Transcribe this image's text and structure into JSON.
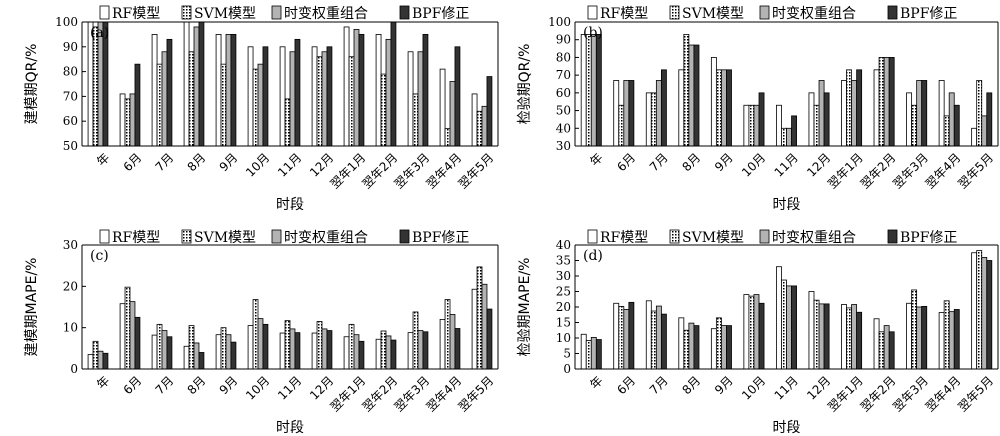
{
  "legend": [
    "RF模型",
    "SVM模型",
    "时变权重组合",
    "BPF修正"
  ],
  "colors": {
    "rf": "#ffffff",
    "svm": "#ffffff",
    "tv": "#b3b3b3",
    "bpf": "#333333"
  },
  "chart_data": [
    {
      "type": "bar",
      "tag": "(a)",
      "ylabel": "建模期QR/%",
      "xlabel": "时段",
      "ylim": [
        50,
        100
      ],
      "yticks": [
        50,
        60,
        70,
        80,
        90,
        100
      ],
      "categories": [
        "年",
        "6月",
        "7月",
        "8月",
        "9月",
        "10月",
        "11月",
        "12月",
        "翌年1月",
        "翌年2月",
        "翌年3月",
        "翌年4月",
        "翌年5月"
      ],
      "series": [
        {
          "name": "RF模型",
          "values": [
            100,
            71,
            95,
            100,
            95,
            90,
            90,
            90,
            98,
            95,
            88,
            81,
            71
          ]
        },
        {
          "name": "SVM模型",
          "values": [
            98,
            69,
            83,
            88,
            83,
            81,
            69,
            86,
            86,
            79,
            71,
            57,
            64
          ]
        },
        {
          "name": "时变权重组合",
          "values": [
            100,
            71,
            88,
            98,
            95,
            83,
            88,
            88,
            97,
            93,
            88,
            76,
            66
          ]
        },
        {
          "name": "BPF修正",
          "values": [
            100,
            83,
            93,
            100,
            95,
            90,
            93,
            90,
            95,
            100,
            95,
            90,
            78
          ]
        }
      ]
    },
    {
      "type": "bar",
      "tag": "(b)",
      "ylabel": "检验期QR/%",
      "xlabel": "时段",
      "ylim": [
        30,
        100
      ],
      "yticks": [
        30,
        40,
        50,
        60,
        70,
        80,
        90,
        100
      ],
      "categories": [
        "年",
        "6月",
        "7月",
        "8月",
        "9月",
        "10月",
        "11月",
        "12月",
        "翌年1月",
        "翌年2月",
        "翌年3月",
        "翌年4月",
        "翌年5月"
      ],
      "series": [
        {
          "name": "RF模型",
          "values": [
            93,
            67,
            60,
            73,
            80,
            53,
            53,
            60,
            67,
            73,
            60,
            67,
            40
          ]
        },
        {
          "name": "SVM模型",
          "values": [
            93,
            53,
            60,
            93,
            73,
            53,
            40,
            53,
            73,
            80,
            53,
            47,
            67
          ]
        },
        {
          "name": "时变权重组合",
          "values": [
            93,
            67,
            67,
            87,
            73,
            53,
            40,
            67,
            67,
            80,
            67,
            60,
            47
          ]
        },
        {
          "name": "BPF修正",
          "values": [
            93,
            67,
            73,
            87,
            73,
            60,
            47,
            60,
            73,
            80,
            67,
            53,
            60
          ]
        }
      ]
    },
    {
      "type": "bar",
      "tag": "(c)",
      "ylabel": "建模期MAPE/%",
      "xlabel": "时段",
      "ylim": [
        0,
        30
      ],
      "yticks": [
        0,
        10,
        20,
        30
      ],
      "categories": [
        "年",
        "6月",
        "7月",
        "8月",
        "9月",
        "10月",
        "11月",
        "12月",
        "翌年1月",
        "翌年2月",
        "翌年3月",
        "翌年4月",
        "翌年5月"
      ],
      "series": [
        {
          "name": "RF模型",
          "values": [
            3.5,
            15.8,
            8.2,
            5.5,
            8.3,
            10.5,
            8.7,
            8.7,
            7.8,
            7.2,
            8.8,
            12.0,
            19.3
          ]
        },
        {
          "name": "SVM模型",
          "values": [
            6.7,
            19.8,
            10.8,
            10.5,
            10.0,
            16.8,
            11.7,
            11.5,
            10.8,
            9.2,
            13.8,
            16.8,
            24.7
          ]
        },
        {
          "name": "时变权重组合",
          "values": [
            4.3,
            16.3,
            9.3,
            6.3,
            8.3,
            12.2,
            9.7,
            9.7,
            8.3,
            8.0,
            9.3,
            13.2,
            20.5
          ]
        },
        {
          "name": "BPF修正",
          "values": [
            3.8,
            12.5,
            7.8,
            4.0,
            6.5,
            10.8,
            8.8,
            9.3,
            6.7,
            7.0,
            9.0,
            9.8,
            14.5
          ]
        }
      ]
    },
    {
      "type": "bar",
      "tag": "(d)",
      "ylabel": "检验期MAPE/%",
      "xlabel": "时段",
      "ylim": [
        0,
        40
      ],
      "yticks": [
        0,
        5,
        10,
        15,
        20,
        25,
        30,
        35,
        40
      ],
      "categories": [
        "年",
        "6月",
        "7月",
        "8月",
        "9月",
        "10月",
        "11月",
        "12月",
        "翌年1月",
        "翌年2月",
        "翌年3月",
        "翌年4月",
        "翌年5月"
      ],
      "series": [
        {
          "name": "RF模型",
          "values": [
            11.2,
            21.2,
            22.0,
            16.5,
            13.0,
            24.0,
            33.0,
            25.0,
            20.8,
            16.2,
            21.2,
            18.2,
            37.5
          ]
        },
        {
          "name": "SVM模型",
          "values": [
            9.2,
            20.2,
            18.7,
            12.5,
            16.5,
            23.5,
            28.7,
            22.2,
            19.7,
            12.0,
            25.5,
            22.0,
            38.2
          ]
        },
        {
          "name": "时变权重组合",
          "values": [
            10.2,
            19.2,
            20.3,
            14.8,
            14.0,
            24.0,
            26.8,
            21.0,
            20.8,
            14.0,
            20.0,
            18.5,
            36.0
          ]
        },
        {
          "name": "BPF修正",
          "values": [
            9.5,
            21.5,
            17.7,
            14.0,
            14.0,
            21.2,
            26.8,
            21.0,
            18.3,
            12.0,
            20.2,
            19.2,
            35.0
          ]
        }
      ]
    }
  ]
}
